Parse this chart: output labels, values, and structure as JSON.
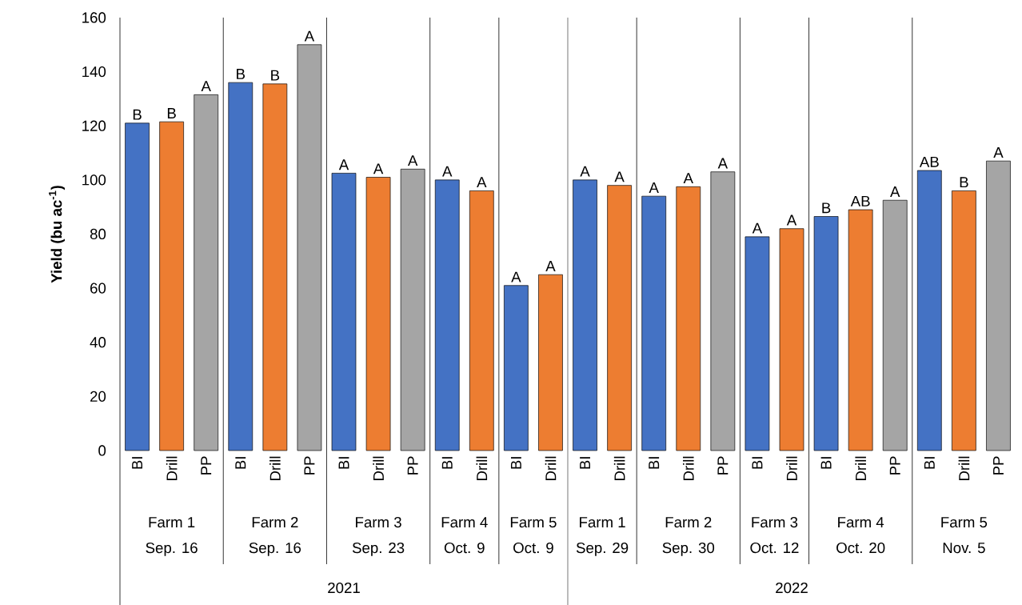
{
  "chart_data": {
    "type": "bar",
    "ylabel": "Yield (bu ac$^{-1}$)",
    "categories": [
      "BI",
      "Drill",
      "PP",
      "BI",
      "Drill",
      "PP",
      "BI",
      "Drill",
      "PP",
      "BI",
      "Drill",
      "BI",
      "Drill",
      "BI",
      "Drill",
      "BI",
      "Drill",
      "PP",
      "BI",
      "Drill",
      "BI",
      "Drill",
      "PP",
      "BI",
      "Drill",
      "PP"
    ],
    "values": [
      121,
      121.5,
      131.5,
      136,
      135.5,
      150,
      102.5,
      101,
      104,
      100,
      96,
      61,
      65,
      100,
      98,
      94,
      97.5,
      103,
      79,
      82,
      86.5,
      89,
      92.5,
      103.5,
      96,
      107
    ],
    "colors": [
      "#4472c4",
      "#ed7d31",
      "#a5a5a5",
      "#4472c4",
      "#ed7d31",
      "#a5a5a5",
      "#4472c4",
      "#ed7d31",
      "#a5a5a5",
      "#4472c4",
      "#ed7d31",
      "#4472c4",
      "#ed7d31",
      "#4472c4",
      "#ed7d31",
      "#4472c4",
      "#ed7d31",
      "#a5a5a5",
      "#4472c4",
      "#ed7d31",
      "#4472c4",
      "#ed7d31",
      "#a5a5a5",
      "#4472c4",
      "#ed7d31",
      "#a5a5a5"
    ],
    "value_labels": [
      "B",
      "B",
      "A",
      "B",
      "B",
      "A",
      "A",
      "A",
      "A",
      "A",
      "A",
      "A",
      "A",
      "A",
      "A",
      "A",
      "A",
      "A",
      "A",
      "A",
      "B",
      "AB",
      "A",
      "AB",
      "B",
      "A"
    ],
    "ylim": [
      0,
      160
    ],
    "yticks": [
      0,
      20,
      40,
      60,
      80,
      100,
      120,
      140,
      160
    ],
    "annotations": [
      "Farm 1",
      "Sep. 16",
      "Farm 2",
      "Sep. 16",
      "Farm 3",
      "Sep. 23",
      "Farm 4",
      "Oct. 9",
      "Farm 5",
      "Oct. 9",
      "Farm 1",
      "Sep. 29",
      "Farm 2",
      "Sep. 30",
      "Farm 3",
      "Oct. 12",
      "Farm 4",
      "Oct. 20",
      "Farm 5",
      "Nov. 5",
      "2021",
      "2022"
    ]
  }
}
